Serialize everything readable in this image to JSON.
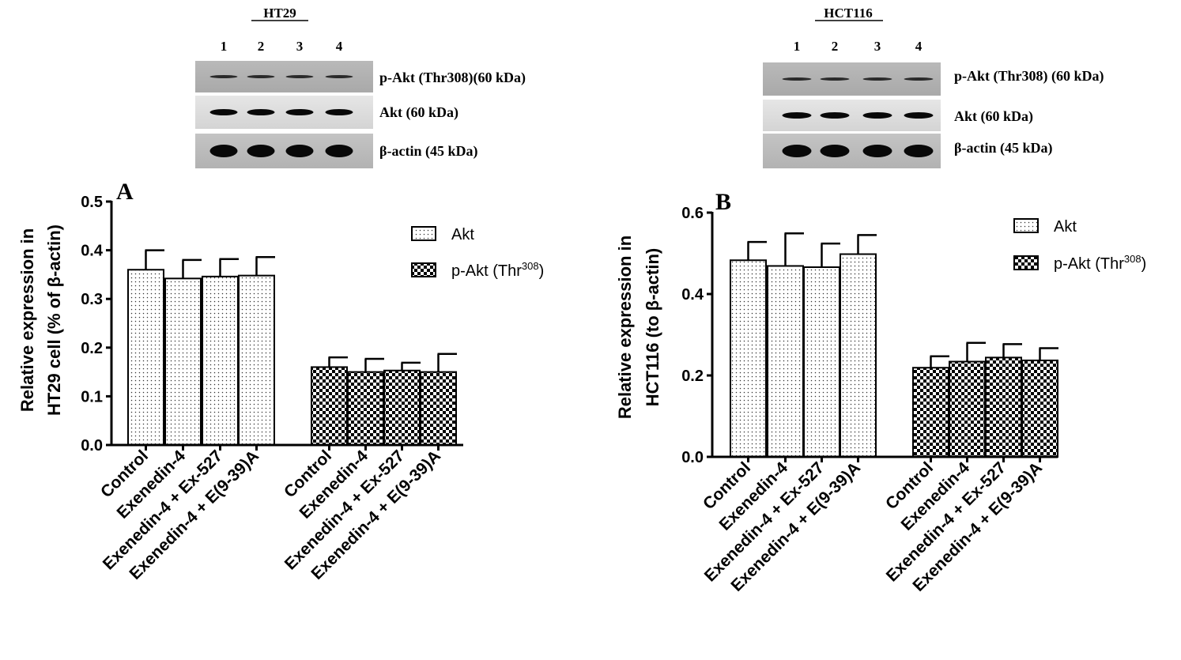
{
  "panels": [
    {
      "blot": {
        "title": "HT29",
        "lanes": [
          "1",
          "2",
          "3",
          "4"
        ],
        "rows": [
          {
            "label": "p-Akt (Thr308)(60 kDa)",
            "tone": "light"
          },
          {
            "label": "Akt (60 kDa)",
            "tone": "medium"
          },
          {
            "label": "β-actin (45 kDa)",
            "tone": "strong"
          }
        ]
      },
      "chart_data": {
        "type": "bar",
        "panel_letter": "A",
        "ylabel_lines": [
          "Relative expression in",
          "HT29 cell  (% of β-actin)"
        ],
        "ylim": [
          0,
          0.5
        ],
        "yticks": [
          "0.0",
          "0.1",
          "0.2",
          "0.3",
          "0.4",
          "0.5"
        ],
        "categories": [
          "Control",
          "Exenedin-4",
          "Exenedin-4 + Ex-527",
          "Exenedin-4 + E(9-39)A"
        ],
        "series": [
          {
            "name": "Akt",
            "pattern": "dots",
            "values": [
              0.36,
              0.342,
              0.346,
              0.348
            ],
            "errors": [
              0.04,
              0.038,
              0.036,
              0.038
            ]
          },
          {
            "name": "p-Akt (Thr308)",
            "pattern": "checker",
            "values": [
              0.16,
              0.15,
              0.153,
              0.15
            ],
            "errors": [
              0.02,
              0.027,
              0.016,
              0.037
            ]
          }
        ],
        "legend": {
          "placement": "right",
          "items": [
            {
              "text": "Akt",
              "sup": ""
            },
            {
              "text": "p-Akt (Thr",
              "sup": "308",
              "close": ")"
            }
          ]
        }
      }
    },
    {
      "blot": {
        "title": "HCT116",
        "lanes": [
          "1",
          "2",
          "3",
          "4"
        ],
        "rows": [
          {
            "label": "p-Akt (Thr308) (60 kDa)",
            "tone": "light"
          },
          {
            "label": "Akt (60 kDa)",
            "tone": "medium"
          },
          {
            "label": "β-actin (45 kDa)",
            "tone": "strong"
          }
        ]
      },
      "chart_data": {
        "type": "bar",
        "panel_letter": "B",
        "ylabel_lines": [
          "Relative expression in",
          "HCT116 (to β-actin)"
        ],
        "ylim": [
          0,
          0.6
        ],
        "yticks": [
          "0.0",
          "0.2",
          "0.4",
          "0.6"
        ],
        "categories": [
          "Control",
          "Exenedin-4",
          "Exenedin-4 + Ex-527",
          "Exenedin-4 + E(9-39)A"
        ],
        "series": [
          {
            "name": "Akt",
            "pattern": "dots",
            "values": [
              0.483,
              0.469,
              0.466,
              0.498
            ],
            "errors": [
              0.045,
              0.08,
              0.058,
              0.047
            ]
          },
          {
            "name": "p-Akt (Thr308)",
            "pattern": "checker",
            "values": [
              0.219,
              0.234,
              0.244,
              0.237
            ],
            "errors": [
              0.028,
              0.046,
              0.033,
              0.03
            ]
          }
        ],
        "legend": {
          "placement": "right",
          "items": [
            {
              "text": "Akt",
              "sup": ""
            },
            {
              "text": "p-Akt (Thr",
              "sup": "308",
              "close": ")"
            }
          ]
        }
      }
    }
  ]
}
